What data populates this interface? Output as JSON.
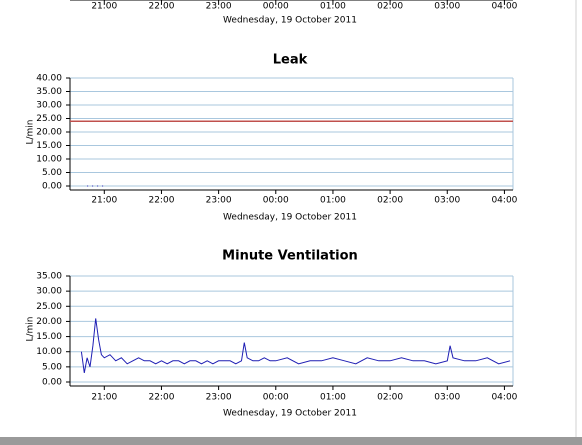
{
  "chart_data": [
    {
      "type": "line",
      "xlabel": "Wednesday, 19 October 2011",
      "xlim": [
        20.4,
        28.15
      ],
      "xticks": [
        {
          "value": 21,
          "label": "21:00"
        },
        {
          "value": 22,
          "label": "22:00"
        },
        {
          "value": 23,
          "label": "23:00"
        },
        {
          "value": 24,
          "label": "00:00"
        },
        {
          "value": 25,
          "label": "01:00"
        },
        {
          "value": 26,
          "label": "02:00"
        },
        {
          "value": 27,
          "label": "03:00"
        },
        {
          "value": 28,
          "label": "04:00"
        }
      ]
    },
    {
      "type": "line",
      "title": "Leak",
      "xlabel": "Wednesday, 19 October 2011",
      "ylabel": "L/min",
      "xlim": [
        20.4,
        28.15
      ],
      "ylim": [
        0,
        40
      ],
      "grid": true,
      "xticks": [
        {
          "value": 21,
          "label": "21:00"
        },
        {
          "value": 22,
          "label": "22:00"
        },
        {
          "value": 23,
          "label": "23:00"
        },
        {
          "value": 24,
          "label": "00:00"
        },
        {
          "value": 25,
          "label": "01:00"
        },
        {
          "value": 26,
          "label": "02:00"
        },
        {
          "value": 27,
          "label": "03:00"
        },
        {
          "value": 28,
          "label": "04:00"
        }
      ],
      "yticks": [
        {
          "value": 0,
          "label": "0.00"
        },
        {
          "value": 5,
          "label": "5.00"
        },
        {
          "value": 10,
          "label": "10.00"
        },
        {
          "value": 15,
          "label": "15.00"
        },
        {
          "value": 20,
          "label": "20.00"
        },
        {
          "value": 25,
          "label": "25.00"
        },
        {
          "value": 30,
          "label": "30.00"
        },
        {
          "value": 35,
          "label": "35.00"
        },
        {
          "value": 40,
          "label": "40.00"
        }
      ],
      "reference_lines": [
        {
          "value": 24,
          "color": "#c0504d"
        }
      ],
      "series": [
        {
          "color": "#1f1fb4",
          "x": [
            20.7,
            20.75,
            20.8,
            20.85,
            20.9,
            21.0
          ],
          "values": [
            0,
            0,
            0,
            0,
            0,
            0
          ]
        }
      ]
    },
    {
      "type": "line",
      "title": "Minute Ventilation",
      "xlabel": "Wednesday, 19 October 2011",
      "ylabel": "L/min",
      "xlim": [
        20.4,
        28.15
      ],
      "ylim": [
        0,
        35
      ],
      "grid": true,
      "xticks": [
        {
          "value": 21,
          "label": "21:00"
        },
        {
          "value": 22,
          "label": "22:00"
        },
        {
          "value": 23,
          "label": "23:00"
        },
        {
          "value": 24,
          "label": "00:00"
        },
        {
          "value": 25,
          "label": "01:00"
        },
        {
          "value": 26,
          "label": "02:00"
        },
        {
          "value": 27,
          "label": "03:00"
        },
        {
          "value": 28,
          "label": "04:00"
        }
      ],
      "yticks": [
        {
          "value": 0,
          "label": "0.00"
        },
        {
          "value": 5,
          "label": "5.00"
        },
        {
          "value": 10,
          "label": "10.00"
        },
        {
          "value": 15,
          "label": "15.00"
        },
        {
          "value": 20,
          "label": "20.00"
        },
        {
          "value": 25,
          "label": "25.00"
        },
        {
          "value": 30,
          "label": "30.00"
        },
        {
          "value": 35,
          "label": "35.00"
        }
      ],
      "series": [
        {
          "color": "#1f1fb4",
          "x": [
            20.6,
            20.65,
            20.7,
            20.75,
            20.8,
            20.85,
            20.9,
            20.95,
            21.0,
            21.1,
            21.2,
            21.3,
            21.4,
            21.5,
            21.6,
            21.7,
            21.8,
            21.9,
            22.0,
            22.1,
            22.2,
            22.3,
            22.4,
            22.5,
            22.6,
            22.7,
            22.8,
            22.9,
            23.0,
            23.1,
            23.2,
            23.3,
            23.4,
            23.45,
            23.5,
            23.6,
            23.7,
            23.8,
            23.9,
            24.0,
            24.2,
            24.4,
            24.6,
            24.8,
            25.0,
            25.2,
            25.4,
            25.6,
            25.8,
            26.0,
            26.2,
            26.4,
            26.6,
            26.8,
            27.0,
            27.05,
            27.1,
            27.3,
            27.5,
            27.7,
            27.9,
            28.1
          ],
          "values": [
            10,
            3,
            8,
            5,
            12,
            21,
            14,
            9,
            8,
            9,
            7,
            8,
            6,
            7,
            8,
            7,
            7,
            6,
            7,
            6,
            7,
            7,
            6,
            7,
            7,
            6,
            7,
            6,
            7,
            7,
            7,
            6,
            7,
            13,
            8,
            7,
            7,
            8,
            7,
            7,
            8,
            6,
            7,
            7,
            8,
            7,
            6,
            8,
            7,
            7,
            8,
            7,
            7,
            6,
            7,
            12,
            8,
            7,
            7,
            8,
            6,
            7
          ]
        }
      ]
    }
  ]
}
